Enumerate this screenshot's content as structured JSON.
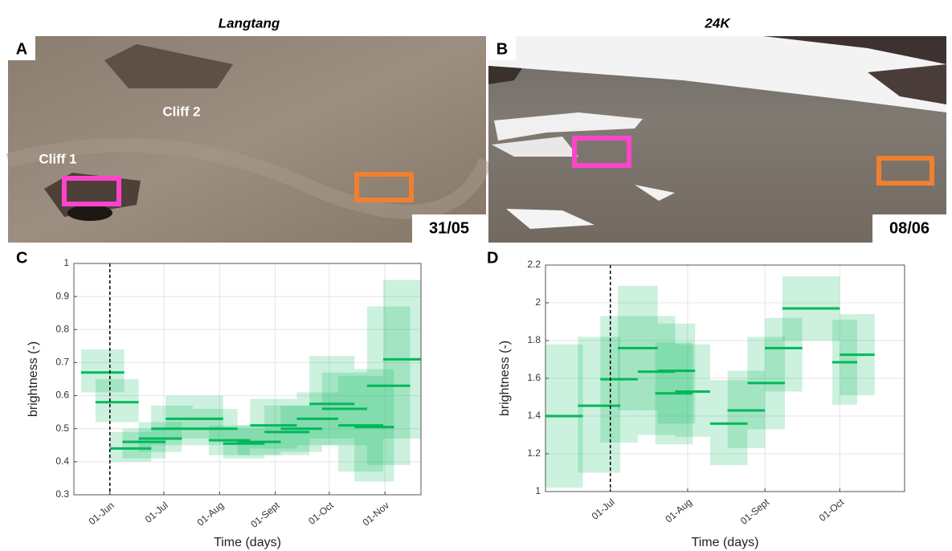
{
  "photos": [
    {
      "title": "Langtang",
      "label": "A",
      "date": "31/05",
      "annotations": [
        "Cliff 2",
        "Cliff 1"
      ]
    },
    {
      "title": "24K",
      "label": "B",
      "date": "08/06"
    }
  ],
  "chart_data": [
    {
      "type": "interval",
      "label": "C",
      "xlabel": "Time (days)",
      "ylabel": "brightness (-)",
      "xlim": [
        132,
        325
      ],
      "ylim": [
        0.3,
        1
      ],
      "xticks": [
        {
          "value": 152,
          "label": "01-Jun"
        },
        {
          "value": 182,
          "label": "01-Jul"
        },
        {
          "value": 213,
          "label": "01-Aug"
        },
        {
          "value": 244,
          "label": "01-Sept"
        },
        {
          "value": 274,
          "label": "01-Oct"
        },
        {
          "value": 305,
          "label": "01-Nov"
        }
      ],
      "yticks": [
        0.3,
        0.4,
        0.5,
        0.6,
        0.7,
        0.8,
        0.9,
        1
      ],
      "grid": true,
      "color": "#00b85a",
      "vline": 152,
      "series": [
        {
          "start": [
            136,
            144,
            152,
            159,
            168,
            175,
            183,
            198,
            207,
            215,
            223,
            230,
            238,
            247,
            256,
            263,
            270,
            279,
            288,
            295,
            304
          ],
          "end": [
            160,
            168,
            175,
            183,
            192,
            198,
            215,
            223,
            230,
            238,
            247,
            256,
            263,
            270,
            279,
            288,
            295,
            304,
            310,
            319,
            325
          ],
          "median": [
            0.67,
            0.58,
            0.44,
            0.46,
            0.47,
            0.5,
            0.53,
            0.5,
            0.465,
            0.455,
            0.46,
            0.51,
            0.49,
            0.5,
            0.53,
            0.575,
            0.56,
            0.51,
            0.505,
            0.63,
            0.71
          ],
          "low": [
            0.61,
            0.52,
            0.4,
            0.41,
            0.43,
            0.45,
            0.47,
            0.45,
            0.42,
            0.41,
            0.42,
            0.44,
            0.42,
            0.43,
            0.45,
            0.47,
            0.45,
            0.37,
            0.34,
            0.39,
            0.47
          ],
          "high": [
            0.74,
            0.65,
            0.49,
            0.5,
            0.52,
            0.57,
            0.6,
            0.56,
            0.51,
            0.5,
            0.51,
            0.59,
            0.57,
            0.57,
            0.61,
            0.72,
            0.67,
            0.66,
            0.68,
            0.87,
            0.95
          ]
        }
      ]
    },
    {
      "type": "interval",
      "label": "D",
      "xlabel": "Time (days)",
      "ylabel": "brightness (-)",
      "xlim": [
        156,
        300
      ],
      "ylim": [
        1,
        2.2
      ],
      "xticks": [
        {
          "value": 182,
          "label": "01-Jul"
        },
        {
          "value": 213,
          "label": "01-Aug"
        },
        {
          "value": 244,
          "label": "01-Sept"
        },
        {
          "value": 274,
          "label": "01-Oct"
        }
      ],
      "yticks": [
        1,
        1.2,
        1.4,
        1.6,
        1.8,
        2,
        2.2
      ],
      "grid": true,
      "color": "#00b85a",
      "vline": 182,
      "series": [
        {
          "start": [
            156,
            169,
            178,
            185,
            193,
            201,
            200,
            208,
            222,
            229,
            237,
            244,
            251,
            271,
            274
          ],
          "end": [
            171,
            186,
            193,
            201,
            208,
            216,
            215,
            222,
            237,
            244,
            252,
            259,
            274,
            281,
            288
          ],
          "median": [
            1.4,
            1.455,
            1.595,
            1.76,
            1.635,
            1.64,
            1.52,
            1.53,
            1.36,
            1.43,
            1.575,
            1.76,
            1.97,
            1.685,
            1.725
          ],
          "low": [
            1.02,
            1.1,
            1.26,
            1.43,
            1.3,
            1.36,
            1.25,
            1.29,
            1.14,
            1.23,
            1.33,
            1.53,
            1.8,
            1.46,
            1.51
          ],
          "high": [
            1.78,
            1.82,
            1.93,
            2.09,
            1.93,
            1.89,
            1.79,
            1.78,
            1.59,
            1.64,
            1.82,
            1.92,
            2.14,
            1.91,
            1.94
          ]
        }
      ]
    }
  ]
}
